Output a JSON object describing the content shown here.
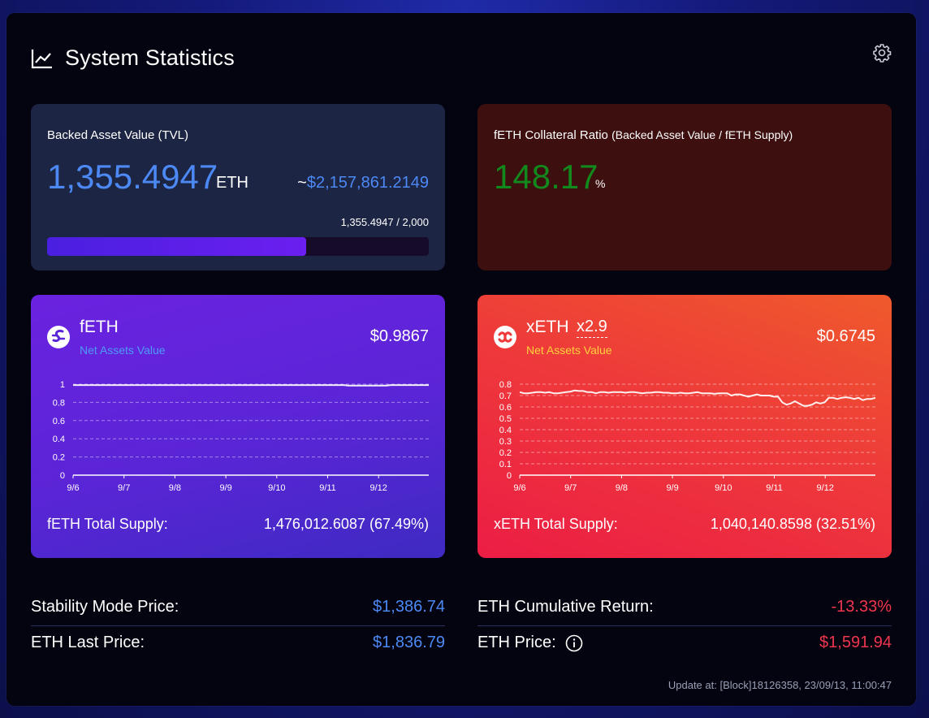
{
  "header": {
    "title": "System Statistics"
  },
  "tvl": {
    "label": "Backed Asset Value (TVL)",
    "value": "1,355.4947",
    "unit": "ETH",
    "usd_tilde": "~",
    "usd_value": "$2,157,861.2149",
    "progress_label": "1,355.4947 / 2,000",
    "progress_fraction": 0.6777
  },
  "collateral": {
    "label": "fETH Collateral Ratio",
    "label_note": "(Backed Asset Value / fETH Supply)",
    "value": "148.17",
    "unit": "%"
  },
  "feth": {
    "name": "fETH",
    "sub": "Net Assets Value",
    "price": "$0.9867",
    "supply_label": "fETH Total Supply:",
    "supply_value": "1,476,012.6087 (67.49%)"
  },
  "xeth": {
    "name": "xETH",
    "leverage": "x2.9",
    "sub": "Net Assets Value",
    "price": "$0.6745",
    "supply_label": "xETH Total Supply:",
    "supply_value": "1,040,140.8598 (32.51%)"
  },
  "stats": {
    "stability_label": "Stability Mode Price:",
    "stability_value": "$1,386.74",
    "eth_last_label": "ETH Last Price:",
    "eth_last_value": "$1,836.79",
    "cum_return_label": "ETH Cumulative Return:",
    "cum_return_value": "-13.33%",
    "eth_price_label": "ETH Price:",
    "eth_price_value": "$1,591.94"
  },
  "update": "Update at: [Block]18126358, 23/09/13, 11:00:47",
  "colors": {
    "accent_blue": "#4d89f5",
    "green": "#12891d",
    "red": "#f0364f"
  },
  "chart_data": [
    {
      "type": "line",
      "x_ticks": [
        "9/6",
        "9/7",
        "9/8",
        "9/9",
        "9/10",
        "9/11",
        "9/12"
      ],
      "y_ticks": [
        0,
        0.2,
        0.4,
        0.6,
        0.8,
        1
      ],
      "ylim": [
        0,
        1
      ],
      "grid": true,
      "series": [
        {
          "values": [
            0.99,
            0.99,
            0.99,
            0.99,
            0.99,
            0.99,
            0.99,
            0.99,
            0.99,
            0.99,
            0.99,
            0.99,
            0.99,
            0.99,
            0.99,
            0.99,
            0.99,
            0.99,
            0.99,
            0.99,
            0.99,
            0.99,
            0.99,
            0.99,
            0.99,
            0.99,
            0.99,
            0.99,
            0.99,
            0.99,
            0.99,
            0.99,
            0.99,
            0.99,
            0.99,
            0.99,
            0.99,
            0.99,
            0.99,
            0.99,
            0.99,
            0.99,
            0.99,
            0.99,
            0.99,
            0.99,
            0.99,
            0.99,
            0.99,
            0.99,
            0.99,
            0.99,
            0.99,
            0.99,
            0.99,
            0.99,
            0.99,
            0.99,
            0.99,
            0.99,
            0.99,
            0.99,
            0.99,
            0.99,
            0.99,
            0.985,
            0.985,
            0.985,
            0.985,
            0.985,
            0.985,
            0.985,
            0.985,
            0.985,
            0.985,
            0.99,
            0.99,
            0.99,
            0.99,
            0.99,
            0.99,
            0.99,
            0.99,
            0.99,
            0.99
          ]
        }
      ]
    },
    {
      "type": "line",
      "x_ticks": [
        "9/6",
        "9/7",
        "9/8",
        "9/9",
        "9/10",
        "9/11",
        "9/12"
      ],
      "y_ticks": [
        0,
        0.1,
        0.2,
        0.3,
        0.4,
        0.5,
        0.6,
        0.7,
        0.8
      ],
      "ylim": [
        0,
        0.8
      ],
      "grid": true,
      "series": [
        {
          "values": [
            0.73,
            0.72,
            0.72,
            0.725,
            0.73,
            0.73,
            0.725,
            0.73,
            0.72,
            0.72,
            0.725,
            0.73,
            0.735,
            0.745,
            0.74,
            0.74,
            0.73,
            0.73,
            0.72,
            0.73,
            0.73,
            0.725,
            0.73,
            0.73,
            0.73,
            0.725,
            0.73,
            0.73,
            0.725,
            0.72,
            0.725,
            0.725,
            0.73,
            0.73,
            0.725,
            0.725,
            0.72,
            0.72,
            0.725,
            0.72,
            0.72,
            0.725,
            0.73,
            0.72,
            0.72,
            0.72,
            0.715,
            0.72,
            0.72,
            0.72,
            0.7,
            0.71,
            0.71,
            0.7,
            0.69,
            0.7,
            0.71,
            0.7,
            0.7,
            0.7,
            0.69,
            0.69,
            0.64,
            0.62,
            0.63,
            0.65,
            0.63,
            0.61,
            0.61,
            0.62,
            0.64,
            0.63,
            0.64,
            0.68,
            0.68,
            0.67,
            0.68,
            0.685,
            0.68,
            0.67,
            0.68,
            0.66,
            0.67,
            0.67,
            0.68
          ]
        }
      ]
    }
  ]
}
